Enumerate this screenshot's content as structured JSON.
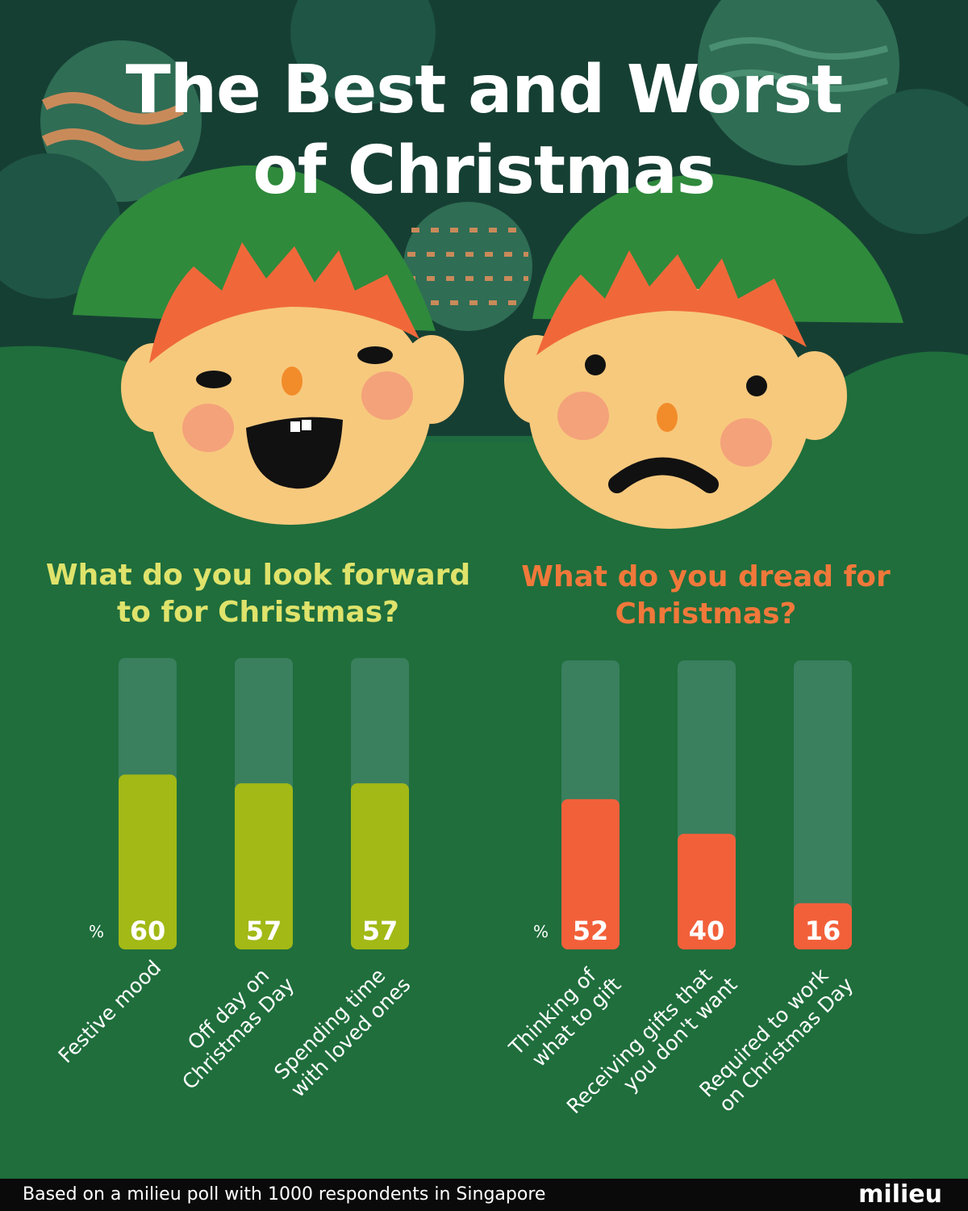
{
  "title": {
    "line1": "The Best and Worst",
    "line2": "of Christmas"
  },
  "charts": {
    "left": {
      "question": "What do you look forward to for Christmas?",
      "unit": "%",
      "color": "#a2b916"
    },
    "right": {
      "question": "What do you dread for Christmas?",
      "unit": "%",
      "color": "#f2603a"
    }
  },
  "chart_data": [
    {
      "type": "bar",
      "title": "What do you look forward to for Christmas?",
      "unit": "%",
      "ylim": [
        0,
        100
      ],
      "categories": [
        "Festive mood",
        "Off day on Christmas Day",
        "Spending time with loved ones"
      ],
      "category_lines": [
        [
          "Festive mood"
        ],
        [
          "Off day on",
          "Christmas Day"
        ],
        [
          "Spending time",
          "with loved ones"
        ]
      ],
      "values": [
        60,
        57,
        57
      ],
      "color": "#a2b916"
    },
    {
      "type": "bar",
      "title": "What do you dread for Christmas?",
      "unit": "%",
      "ylim": [
        0,
        100
      ],
      "categories": [
        "Thinking of what to gift",
        "Receiving gifts that you don't want",
        "Required to work on Christmas Day"
      ],
      "category_lines": [
        [
          "Thinking of",
          "what to gift"
        ],
        [
          "Receiving gifts that",
          "you don't want"
        ],
        [
          "Required to work",
          "on Christmas Day"
        ]
      ],
      "values": [
        52,
        40,
        16
      ],
      "color": "#f2603a"
    }
  ],
  "footer": {
    "text": "Based on a milieu poll with 1000 respondents in Singapore",
    "logo": "milieu"
  },
  "colors": {
    "track": "#3a7f5e",
    "title": "#ffffff",
    "question_left": "#dfe36b",
    "question_right": "#f0783a"
  }
}
